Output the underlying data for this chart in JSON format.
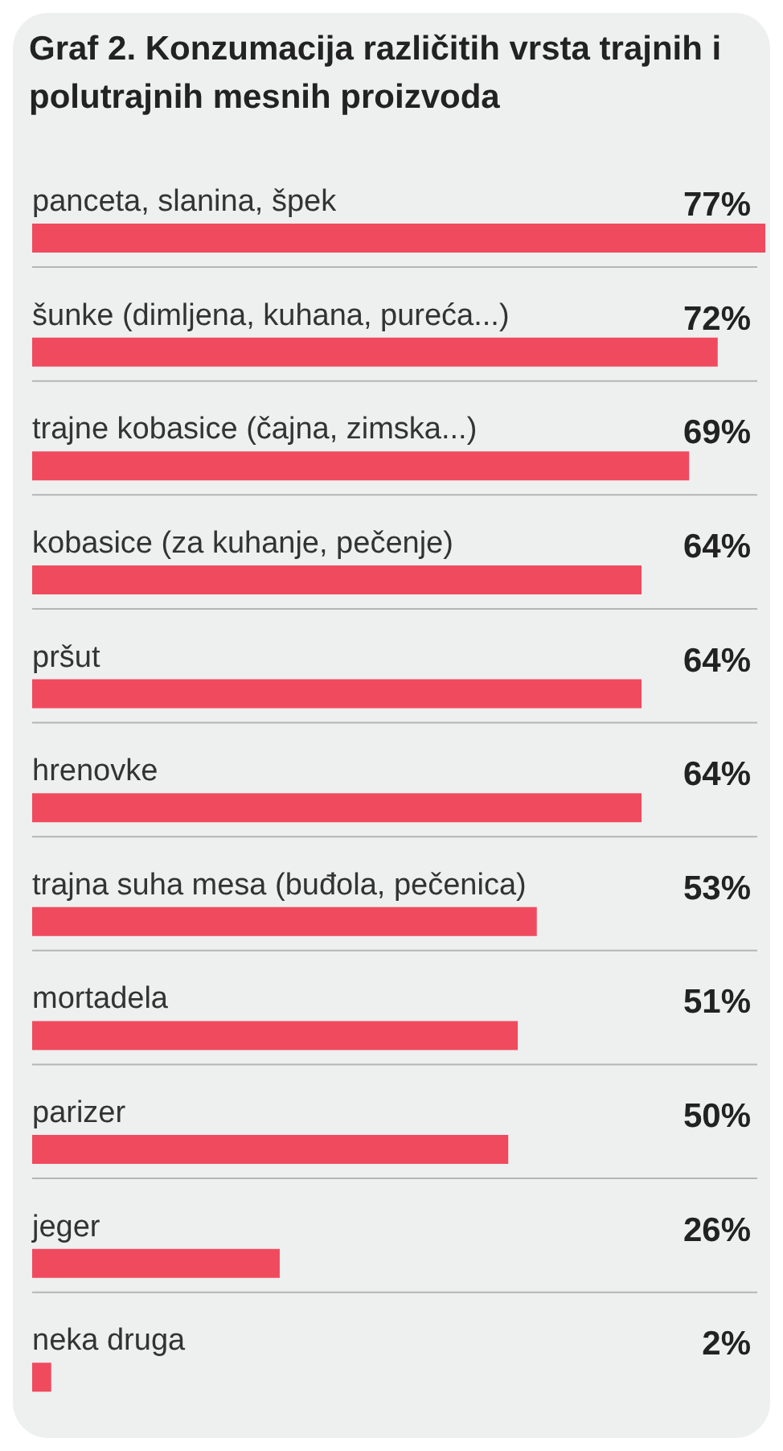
{
  "chart_data": {
    "type": "bar",
    "orientation": "horizontal",
    "title": "Graf 2. Konzumacija različitih vrsta trajnih i polutrajnih mesnih proizvoda",
    "categories": [
      "panceta, slanina, špek",
      "šunke (dimljena, kuhana, pureća...)",
      "trajne kobasice (čajna, zimska...)",
      "kobasice (za kuhanje, pečenje)",
      "pršut",
      "hrenovke",
      "trajna suha mesa (buđola, pečenica)",
      "mortadela",
      "parizer",
      "jeger",
      "neka druga"
    ],
    "values": [
      77,
      72,
      69,
      64,
      64,
      64,
      53,
      51,
      50,
      26,
      2
    ],
    "value_labels": [
      "77%",
      "72%",
      "69%",
      "64%",
      "64%",
      "64%",
      "53%",
      "51%",
      "50%",
      "26%",
      "2%"
    ],
    "color": "#f04a5e"
  }
}
